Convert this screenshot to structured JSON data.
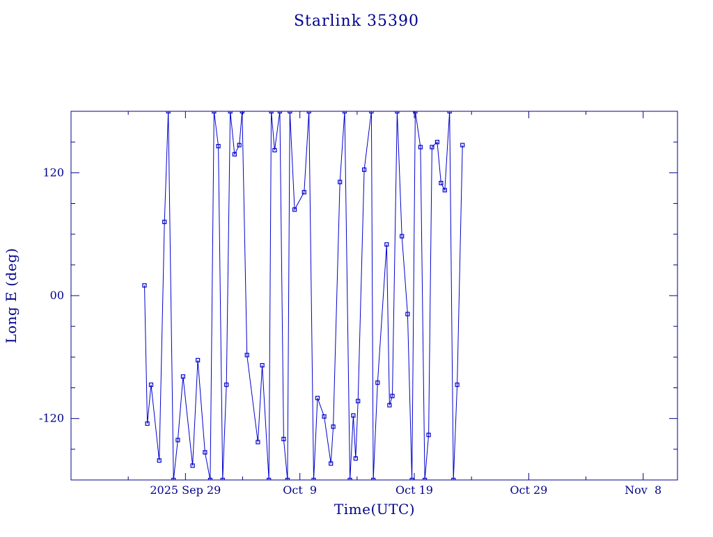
{
  "colors": {
    "foreground": "#00008b",
    "series": "#0000cd",
    "background": "#ffffff"
  },
  "chart_data": {
    "type": "line",
    "title": "Starlink 35390",
    "xlabel": "Time(UTC)",
    "ylabel": "Long E (deg)",
    "x_axis": {
      "type": "date",
      "range": [
        "2025-09-19",
        "2025-11-11"
      ],
      "ticks": [
        {
          "date": "2025-09-29",
          "label": "2025 Sep 29"
        },
        {
          "date": "2025-10-09",
          "label": "Oct  9"
        },
        {
          "date": "2025-10-19",
          "label": "Oct 19"
        },
        {
          "date": "2025-10-29",
          "label": "Oct 29"
        },
        {
          "date": "2025-11-08",
          "label": "Nov  8"
        }
      ]
    },
    "y_axis": {
      "range": [
        -180,
        180
      ],
      "ticks": [
        {
          "value": 120,
          "label": "120"
        },
        {
          "value": 0,
          "label": "00"
        },
        {
          "value": -120,
          "label": "-120"
        }
      ]
    },
    "grid": false,
    "legend": "none",
    "series": [
      {
        "marker": "square",
        "points": [
          [
            "2025-09-25 10:00",
            10
          ],
          [
            "2025-09-25 16:00",
            -125
          ],
          [
            "2025-09-26 00:00",
            -87
          ],
          [
            "2025-09-26 17:00",
            -161
          ],
          [
            "2025-09-27 04:00",
            72
          ],
          [
            "2025-09-27 12:00",
            180
          ],
          [
            "2025-09-27 23:00",
            -180
          ],
          [
            "2025-09-28 08:00",
            -141
          ],
          [
            "2025-09-28 19:00",
            -79
          ],
          [
            "2025-09-29 15:00",
            -166
          ],
          [
            "2025-09-30 02:00",
            -63
          ],
          [
            "2025-09-30 17:00",
            -153
          ],
          [
            "2025-10-01 04:00",
            -180
          ],
          [
            "2025-10-01 12:00",
            180
          ],
          [
            "2025-10-01 21:00",
            146
          ],
          [
            "2025-10-02 06:00",
            -180
          ],
          [
            "2025-10-02 14:00",
            -87
          ],
          [
            "2025-10-02 22:00",
            180
          ],
          [
            "2025-10-03 07:00",
            138
          ],
          [
            "2025-10-03 17:00",
            147
          ],
          [
            "2025-10-03 23:00",
            180
          ],
          [
            "2025-10-04 09:00",
            -58
          ],
          [
            "2025-10-05 08:00",
            -143
          ],
          [
            "2025-10-05 17:00",
            -68
          ],
          [
            "2025-10-06 07:00",
            -180
          ],
          [
            "2025-10-06 12:00",
            180
          ],
          [
            "2025-10-06 19:00",
            142
          ],
          [
            "2025-10-07 06:00",
            180
          ],
          [
            "2025-10-07 14:00",
            -140
          ],
          [
            "2025-10-07 22:00",
            -180
          ],
          [
            "2025-10-08 03:00",
            180
          ],
          [
            "2025-10-08 13:00",
            84
          ],
          [
            "2025-10-09 09:00",
            101
          ],
          [
            "2025-10-09 19:00",
            180
          ],
          [
            "2025-10-10 05:00",
            -180
          ],
          [
            "2025-10-10 13:00",
            -100
          ],
          [
            "2025-10-11 03:00",
            -118
          ],
          [
            "2025-10-11 17:00",
            -164
          ],
          [
            "2025-10-11 22:00",
            -128
          ],
          [
            "2025-10-12 12:00",
            111
          ],
          [
            "2025-10-12 22:00",
            180
          ],
          [
            "2025-10-13 09:00",
            -180
          ],
          [
            "2025-10-13 16:00",
            -117
          ],
          [
            "2025-10-13 21:00",
            -159
          ],
          [
            "2025-10-14 02:00",
            -103
          ],
          [
            "2025-10-14 15:00",
            123
          ],
          [
            "2025-10-15 06:00",
            180
          ],
          [
            "2025-10-15 10:00",
            -180
          ],
          [
            "2025-10-15 19:00",
            -85
          ],
          [
            "2025-10-16 14:00",
            50
          ],
          [
            "2025-10-16 20:00",
            -107
          ],
          [
            "2025-10-17 02:00",
            -98
          ],
          [
            "2025-10-17 12:00",
            180
          ],
          [
            "2025-10-17 22:00",
            58
          ],
          [
            "2025-10-18 10:00",
            -18
          ],
          [
            "2025-10-18 19:00",
            -180
          ],
          [
            "2025-10-19 02:00",
            180
          ],
          [
            "2025-10-19 13:00",
            145
          ],
          [
            "2025-10-19 22:00",
            -180
          ],
          [
            "2025-10-20 06:00",
            -136
          ],
          [
            "2025-10-20 13:00",
            145
          ],
          [
            "2025-10-21 00:00",
            150
          ],
          [
            "2025-10-21 08:00",
            110
          ],
          [
            "2025-10-21 16:00",
            103
          ],
          [
            "2025-10-22 02:00",
            180
          ],
          [
            "2025-10-22 10:00",
            -180
          ],
          [
            "2025-10-22 18:00",
            -87
          ],
          [
            "2025-10-23 05:00",
            147
          ]
        ]
      }
    ]
  }
}
